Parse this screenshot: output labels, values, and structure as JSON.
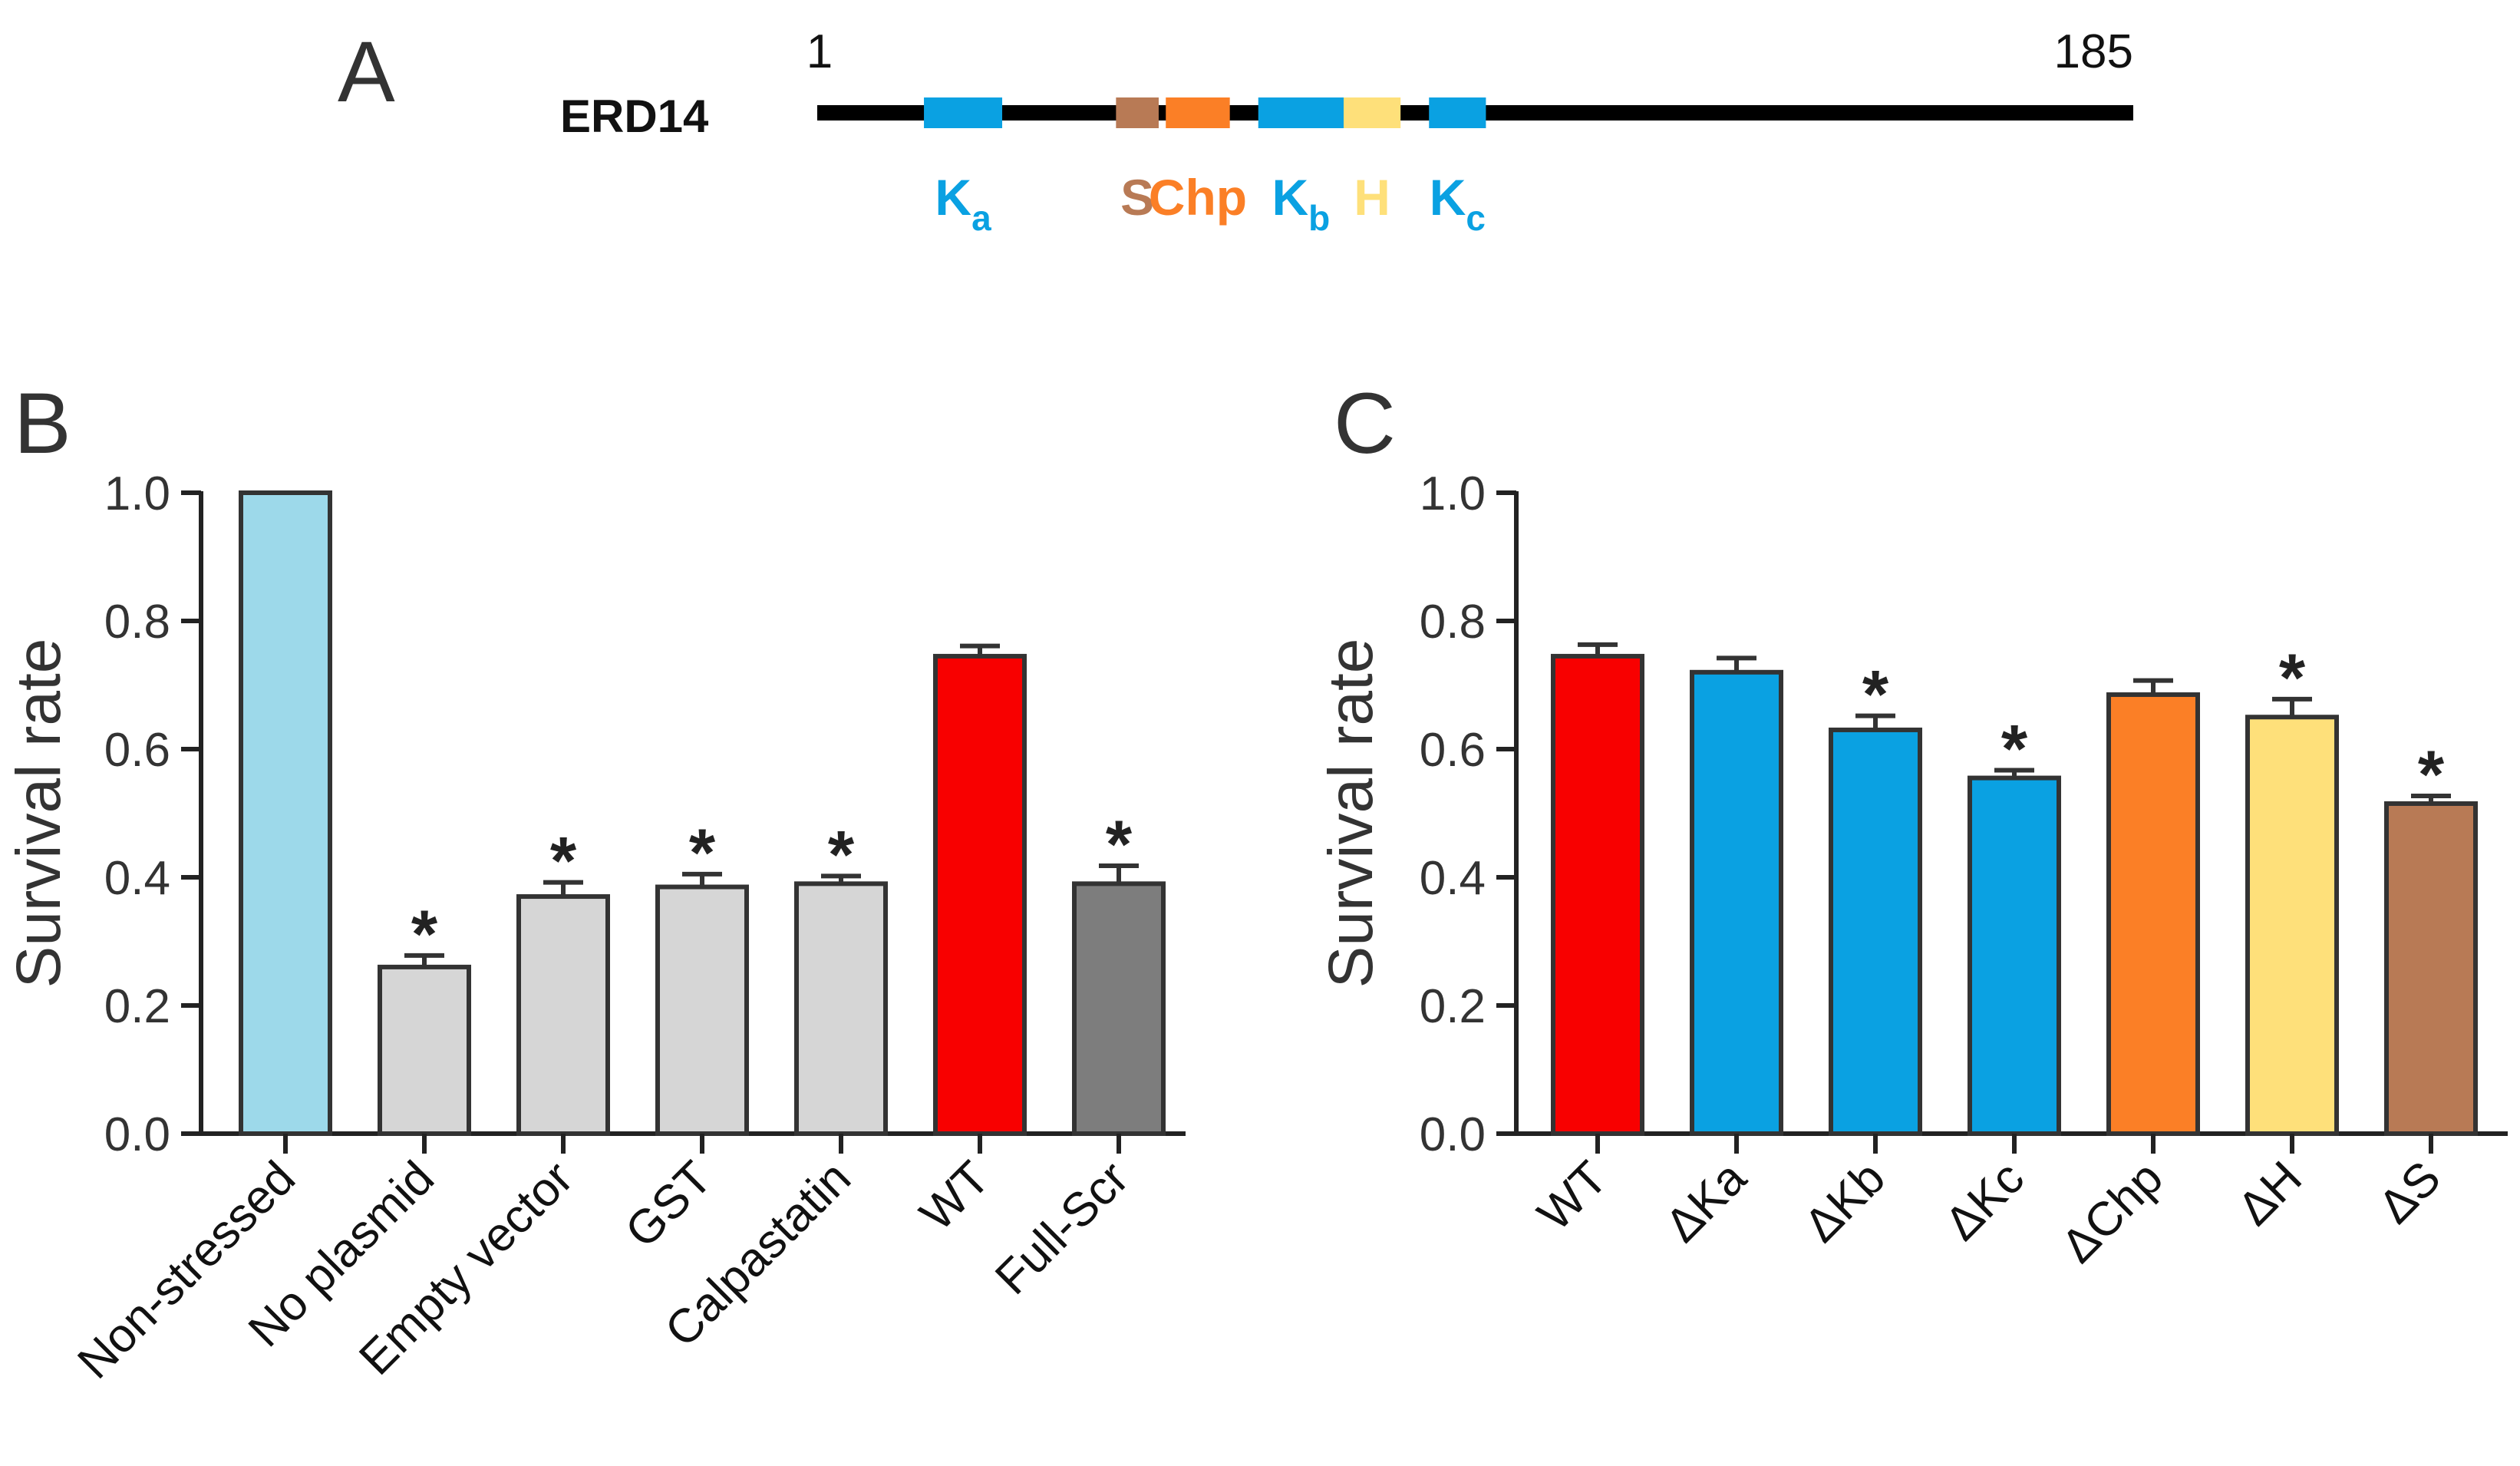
{
  "panels": {
    "a": {
      "letter": "A",
      "protein": "ERD14",
      "start": "1",
      "end": "185",
      "length": 185,
      "segments": [
        {
          "id": "ka",
          "label": "K",
          "sub": "a",
          "start": 15,
          "end": 26,
          "color": "#0aa1e2"
        },
        {
          "id": "s",
          "label": "S",
          "sub": "",
          "start": 42,
          "end": 48,
          "color": "#b87a55"
        },
        {
          "id": "chp",
          "label": "Chp",
          "sub": "",
          "start": 49,
          "end": 58,
          "color": "#fb7f26"
        },
        {
          "id": "kb",
          "label": "K",
          "sub": "b",
          "start": 62,
          "end": 74,
          "color": "#0aa1e2"
        },
        {
          "id": "h",
          "label": "H",
          "sub": "",
          "start": 74,
          "end": 82,
          "color": "#fee07a"
        },
        {
          "id": "kc",
          "label": "K",
          "sub": "c",
          "start": 86,
          "end": 94,
          "color": "#0aa1e2"
        }
      ]
    },
    "b": {
      "letter": "B"
    },
    "c": {
      "letter": "C"
    }
  },
  "chart_data": [
    {
      "type": "bar",
      "panel": "B",
      "ylabel": "Survival rate",
      "xlabel": "",
      "ylim": [
        0.0,
        1.0
      ],
      "yticks": [
        "0.0",
        "0.2",
        "0.4",
        "0.6",
        "0.8",
        "1.0"
      ],
      "categories": [
        "Non-stressed",
        "No plasmid",
        "Empty vector",
        "GST",
        "Calpastatin",
        "WT",
        "Full-Scr"
      ],
      "values": [
        1.0,
        0.26,
        0.37,
        0.385,
        0.39,
        0.745,
        0.39
      ],
      "errors": [
        0.0,
        0.018,
        0.022,
        0.02,
        0.012,
        0.016,
        0.028
      ],
      "significant": [
        false,
        true,
        true,
        true,
        true,
        false,
        true
      ],
      "significance_mark": "*",
      "colors": [
        "#9dd9ea",
        "#d6d6d6",
        "#d6d6d6",
        "#d6d6d6",
        "#d6d6d6",
        "#f80000",
        "#7d7d7d"
      ]
    },
    {
      "type": "bar",
      "panel": "C",
      "ylabel": "Survival rate",
      "xlabel": "",
      "ylim": [
        0.0,
        1.0
      ],
      "yticks": [
        "0.0",
        "0.2",
        "0.4",
        "0.6",
        "0.8",
        "1.0"
      ],
      "categories": [
        "WT",
        "ΔKa",
        "ΔKb",
        "ΔKc",
        "ΔChp",
        "ΔH",
        "ΔS"
      ],
      "values": [
        0.745,
        0.72,
        0.63,
        0.555,
        0.685,
        0.65,
        0.515
      ],
      "errors": [
        0.018,
        0.022,
        0.022,
        0.012,
        0.022,
        0.028,
        0.012
      ],
      "significant": [
        false,
        false,
        true,
        true,
        false,
        true,
        true
      ],
      "significance_mark": "*",
      "colors": [
        "#f80000",
        "#0aa1e2",
        "#0aa1e2",
        "#0aa1e2",
        "#fb7f26",
        "#fee07a",
        "#b87a55"
      ]
    }
  ]
}
